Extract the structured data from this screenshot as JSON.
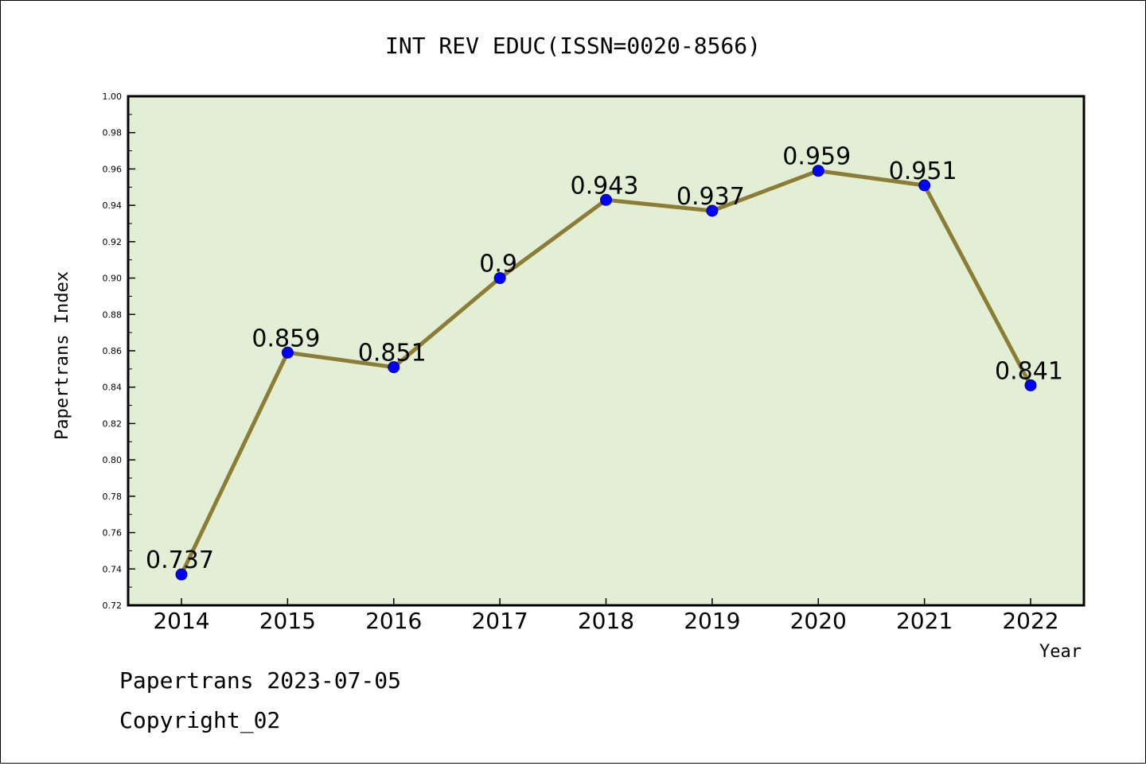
{
  "chart_data": {
    "type": "line",
    "title": "INT REV EDUC(ISSN=0020-8566)",
    "xlabel": "Year",
    "ylabel": "Papertrans Index",
    "x": [
      "2014",
      "2015",
      "2016",
      "2017",
      "2018",
      "2019",
      "2020",
      "2021",
      "2022"
    ],
    "values": [
      0.737,
      0.859,
      0.851,
      0.9,
      0.943,
      0.937,
      0.959,
      0.951,
      0.841
    ],
    "data_labels": [
      "0.737",
      "0.859",
      "0.851",
      "0.9",
      "0.943",
      "0.937",
      "0.959",
      "0.951",
      "0.841"
    ],
    "ylim": [
      0.72,
      1.0
    ],
    "yticks": [
      "0.72",
      "0.74",
      "0.76",
      "0.78",
      "0.80",
      "0.82",
      "0.84",
      "0.86",
      "0.88",
      "0.90",
      "0.92",
      "0.94",
      "0.96",
      "0.98",
      "1.00"
    ],
    "grid": false,
    "colors": {
      "plot_background": "#e2efd4",
      "line": "#8b7d35",
      "marker": "#0000ff"
    }
  },
  "footer": {
    "line1": "Papertrans 2023-07-05",
    "line2": "Copyright_02"
  }
}
